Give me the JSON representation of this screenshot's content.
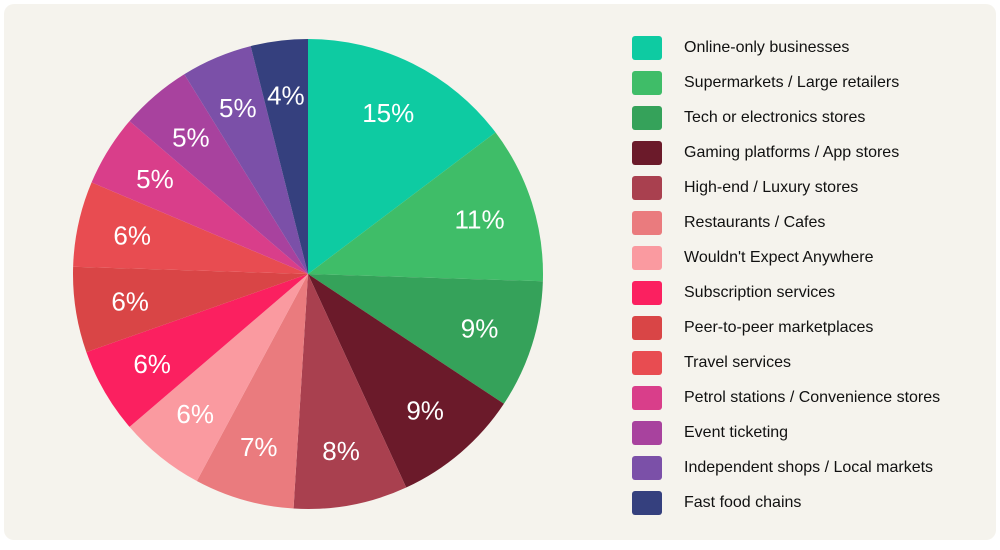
{
  "chart_data": {
    "type": "pie",
    "start_angle": "12 o'clock, clockwise",
    "legend_position": "right",
    "slices": [
      {
        "name": "Online-only businesses",
        "value": 15,
        "label": "15%",
        "color": "#0ecba2"
      },
      {
        "name": "Supermarkets / Large retailers",
        "value": 11,
        "label": "11%",
        "color": "#3fbd68"
      },
      {
        "name": "Tech or electronics stores",
        "value": 9,
        "label": "9%",
        "color": "#35a25a"
      },
      {
        "name": "Gaming platforms / App stores",
        "value": 9,
        "label": "9%",
        "color": "#6b1a2a"
      },
      {
        "name": "High-end / Luxury stores",
        "value": 8,
        "label": "8%",
        "color": "#a9404f"
      },
      {
        "name": "Restaurants / Cafes",
        "value": 7,
        "label": "7%",
        "color": "#ea7b7e"
      },
      {
        "name": "Wouldn't Expect Anywhere",
        "value": 6,
        "label": "6%",
        "color": "#fa9aa0"
      },
      {
        "name": "Subscription services",
        "value": 6,
        "label": "6%",
        "color": "#fb2060"
      },
      {
        "name": "Peer-to-peer marketplaces",
        "value": 6,
        "label": "6%",
        "color": "#d94546"
      },
      {
        "name": "Travel services",
        "value": 6,
        "label": "6%",
        "color": "#e84c51"
      },
      {
        "name": "Petrol stations / Convenience stores",
        "value": 5,
        "label": "5%",
        "color": "#d93e8a"
      },
      {
        "name": "Event ticketing",
        "value": 5,
        "label": "5%",
        "color": "#a8429e"
      },
      {
        "name": "Independent shops / Local markets",
        "value": 5,
        "label": "5%",
        "color": "#7b50a8"
      },
      {
        "name": "Fast food chains",
        "value": 4,
        "label": "4%",
        "color": "#35407e"
      }
    ]
  }
}
